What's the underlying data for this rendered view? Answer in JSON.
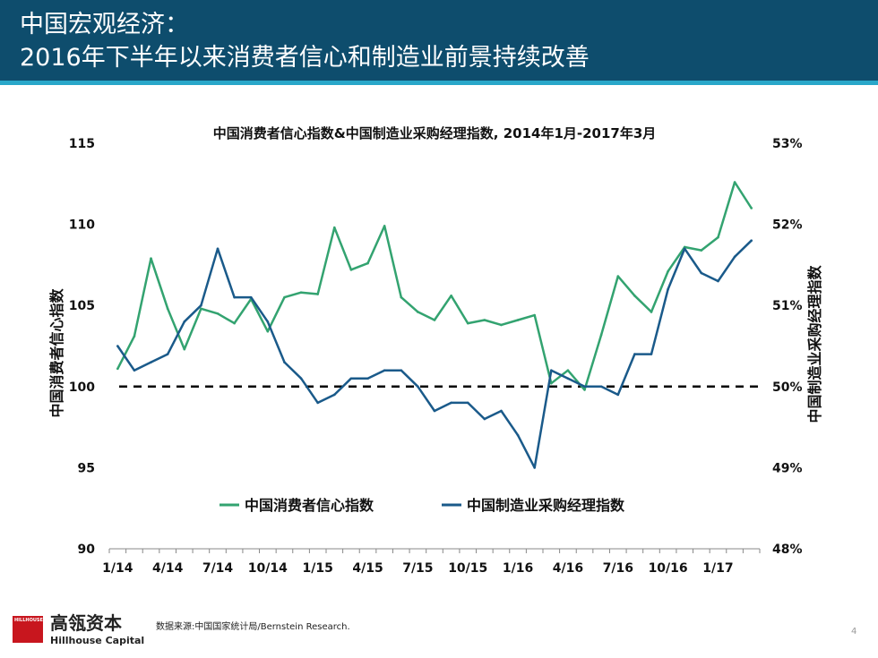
{
  "slide": {
    "title_line1": "中国宏观经济：",
    "title_line2": "2016年下半年以来消费者信心和制造业前景持续改善",
    "company_cn": "高瓴资本",
    "company_en": "Hillhouse Capital",
    "logo_text": "HILLHOUSE",
    "source": "数据来源:中国国家统计局/Bernstein Research.",
    "page_number": "4"
  },
  "colors": {
    "header": "#0e4d6d",
    "header_accent": "#29a7c9",
    "consumer": "#33a370",
    "pmi": "#1a5a8a",
    "logo": "#c8161e"
  },
  "chart_data": {
    "type": "line",
    "title": "中国消费者信心指数&中国制造业采购经理指数, 2014年1月-2017年3月",
    "ylabel_left": "中国消费者信心指数",
    "ylabel_right": "中国制造业采购经理指数",
    "ylim_left": [
      90,
      115
    ],
    "ylim_right": [
      48,
      53
    ],
    "y_ticks_left": [
      "90",
      "95",
      "100",
      "105",
      "110",
      "115"
    ],
    "y_ticks_right": [
      "48%",
      "49%",
      "50%",
      "51%",
      "52%",
      "53%"
    ],
    "x_tick_labels": [
      "1/14",
      "4/14",
      "7/14",
      "10/14",
      "1/15",
      "4/15",
      "7/15",
      "10/15",
      "1/16",
      "4/16",
      "7/16",
      "10/16",
      "1/17"
    ],
    "legend_position": "lower-center",
    "reference_line": {
      "axis": "left",
      "value": 100,
      "style": "dashed"
    },
    "series": [
      {
        "name": "中国消费者信心指数",
        "axis": "left",
        "values": [
          101.1,
          103.1,
          107.9,
          104.8,
          102.3,
          104.8,
          104.5,
          103.9,
          105.4,
          103.4,
          105.5,
          105.8,
          105.7,
          109.8,
          107.2,
          107.6,
          109.9,
          105.5,
          104.6,
          104.1,
          105.6,
          103.9,
          104.1,
          103.8,
          104.1,
          104.4,
          100.2,
          101.0,
          99.8,
          103.2,
          106.8,
          105.6,
          104.6,
          107.1,
          108.6,
          108.4,
          109.2,
          112.6,
          111.0
        ]
      },
      {
        "name": "中国制造业采购经理指数",
        "axis": "right",
        "values": [
          50.5,
          50.2,
          50.3,
          50.4,
          50.8,
          51.0,
          51.7,
          51.1,
          51.1,
          50.8,
          50.3,
          50.1,
          49.8,
          49.9,
          50.1,
          50.1,
          50.2,
          50.2,
          50.0,
          49.7,
          49.8,
          49.8,
          49.6,
          49.7,
          49.4,
          49.0,
          50.2,
          50.1,
          50.0,
          50.0,
          49.9,
          50.4,
          50.4,
          51.2,
          51.7,
          51.4,
          51.3,
          51.6,
          51.8
        ]
      }
    ]
  }
}
